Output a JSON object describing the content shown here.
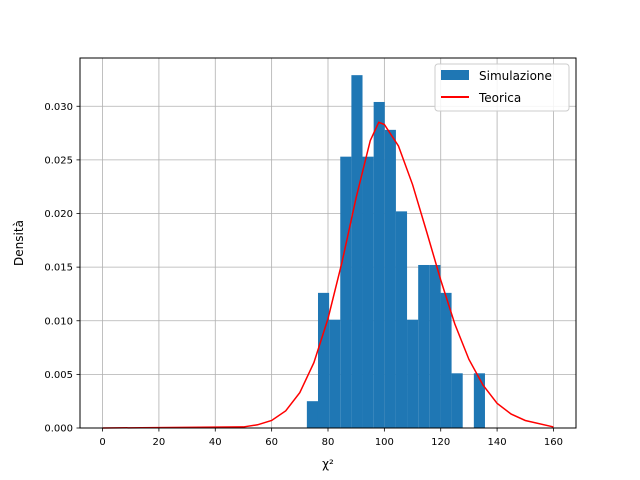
{
  "chart_data": {
    "type": "bar",
    "title": "",
    "xlabel": "χ²",
    "ylabel": "Densità",
    "xlim": [
      -8,
      168
    ],
    "ylim": [
      0,
      0.0345
    ],
    "xticks": [
      0,
      20,
      40,
      60,
      80,
      100,
      120,
      140,
      160
    ],
    "yticks": [
      0.0,
      0.005,
      0.01,
      0.015,
      0.02,
      0.025,
      0.03
    ],
    "grid": true,
    "legend_position": "top-right",
    "series": [
      {
        "name": "Simulazione",
        "kind": "histogram",
        "color": "#1f77b4",
        "bin_width": 3.95,
        "bins": [
          {
            "x0": 72.5,
            "value": 0.0025
          },
          {
            "x0": 76.45,
            "value": 0.0126
          },
          {
            "x0": 80.4,
            "value": 0.0101
          },
          {
            "x0": 84.35,
            "value": 0.0253
          },
          {
            "x0": 88.3,
            "value": 0.0329
          },
          {
            "x0": 92.25,
            "value": 0.0253
          },
          {
            "x0": 96.2,
            "value": 0.0304
          },
          {
            "x0": 100.15,
            "value": 0.0278
          },
          {
            "x0": 104.1,
            "value": 0.0202
          },
          {
            "x0": 108.05,
            "value": 0.0101
          },
          {
            "x0": 112.0,
            "value": 0.0152
          },
          {
            "x0": 115.95,
            "value": 0.0152
          },
          {
            "x0": 119.9,
            "value": 0.0126
          },
          {
            "x0": 123.85,
            "value": 0.0051
          },
          {
            "x0": 127.8,
            "value": 0.0
          },
          {
            "x0": 131.75,
            "value": 0.0051
          }
        ]
      },
      {
        "name": "Teorica",
        "kind": "line",
        "color": "#ff0000",
        "x": [
          0,
          50,
          55,
          60,
          65,
          70,
          75,
          80,
          85,
          90,
          95,
          98,
          100,
          105,
          110,
          115,
          120,
          125,
          130,
          135,
          140,
          145,
          150,
          160
        ],
        "y": [
          0,
          0.0001,
          0.0003,
          0.0007,
          0.0016,
          0.0033,
          0.0061,
          0.0102,
          0.0155,
          0.0215,
          0.0268,
          0.0285,
          0.0283,
          0.0263,
          0.0227,
          0.0183,
          0.0138,
          0.0097,
          0.0064,
          0.004,
          0.0023,
          0.0013,
          0.0007,
          0.0001
        ]
      }
    ]
  }
}
